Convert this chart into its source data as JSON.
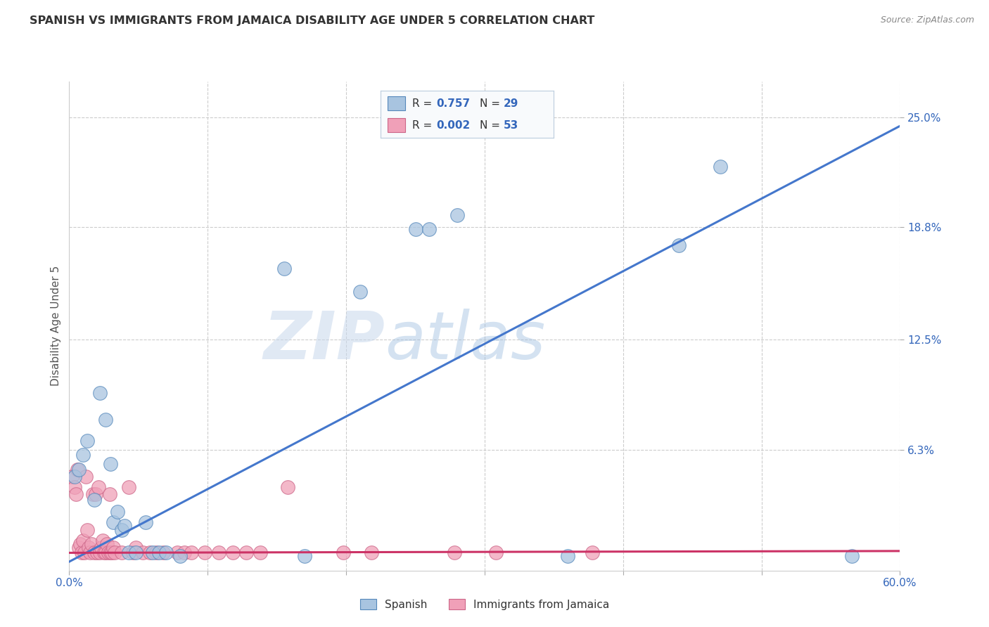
{
  "title": "SPANISH VS IMMIGRANTS FROM JAMAICA DISABILITY AGE UNDER 5 CORRELATION CHART",
  "source": "Source: ZipAtlas.com",
  "ylabel": "Disability Age Under 5",
  "watermark": "ZIPatlas",
  "xlim": [
    0.0,
    0.6
  ],
  "ylim": [
    -0.005,
    0.27
  ],
  "xtick_labels": [
    "0.0%",
    "",
    "",
    "",
    "",
    "",
    "60.0%"
  ],
  "xtick_vals": [
    0.0,
    0.1,
    0.2,
    0.3,
    0.4,
    0.5,
    0.6
  ],
  "ytick_labels": [
    "25.0%",
    "18.8%",
    "12.5%",
    "6.3%"
  ],
  "ytick_vals": [
    0.25,
    0.188,
    0.125,
    0.063
  ],
  "legend_blue_R": "0.757",
  "legend_blue_N": "29",
  "legend_pink_R": "0.002",
  "legend_pink_N": "53",
  "blue_fill": "#A8C4E0",
  "blue_edge": "#5588BB",
  "pink_fill": "#F0A0B8",
  "pink_edge": "#CC6688",
  "blue_line_color": "#4477CC",
  "pink_line_color": "#CC3366",
  "blue_scatter": [
    [
      0.004,
      0.048
    ],
    [
      0.007,
      0.052
    ],
    [
      0.01,
      0.06
    ],
    [
      0.013,
      0.068
    ],
    [
      0.018,
      0.035
    ],
    [
      0.022,
      0.095
    ],
    [
      0.026,
      0.08
    ],
    [
      0.03,
      0.055
    ],
    [
      0.032,
      0.022
    ],
    [
      0.035,
      0.028
    ],
    [
      0.038,
      0.018
    ],
    [
      0.04,
      0.02
    ],
    [
      0.043,
      0.005
    ],
    [
      0.048,
      0.005
    ],
    [
      0.055,
      0.022
    ],
    [
      0.06,
      0.005
    ],
    [
      0.065,
      0.005
    ],
    [
      0.07,
      0.005
    ],
    [
      0.08,
      0.003
    ],
    [
      0.155,
      0.165
    ],
    [
      0.17,
      0.003
    ],
    [
      0.21,
      0.152
    ],
    [
      0.25,
      0.187
    ],
    [
      0.26,
      0.187
    ],
    [
      0.28,
      0.195
    ],
    [
      0.36,
      0.003
    ],
    [
      0.44,
      0.178
    ],
    [
      0.47,
      0.222
    ],
    [
      0.565,
      0.003
    ]
  ],
  "pink_scatter": [
    [
      0.002,
      0.048
    ],
    [
      0.004,
      0.042
    ],
    [
      0.005,
      0.038
    ],
    [
      0.006,
      0.052
    ],
    [
      0.007,
      0.008
    ],
    [
      0.008,
      0.01
    ],
    [
      0.009,
      0.005
    ],
    [
      0.01,
      0.012
    ],
    [
      0.011,
      0.005
    ],
    [
      0.012,
      0.048
    ],
    [
      0.013,
      0.018
    ],
    [
      0.014,
      0.008
    ],
    [
      0.015,
      0.005
    ],
    [
      0.016,
      0.01
    ],
    [
      0.017,
      0.038
    ],
    [
      0.018,
      0.005
    ],
    [
      0.019,
      0.038
    ],
    [
      0.02,
      0.005
    ],
    [
      0.021,
      0.042
    ],
    [
      0.022,
      0.005
    ],
    [
      0.023,
      0.008
    ],
    [
      0.024,
      0.012
    ],
    [
      0.025,
      0.005
    ],
    [
      0.026,
      0.005
    ],
    [
      0.027,
      0.01
    ],
    [
      0.028,
      0.005
    ],
    [
      0.029,
      0.038
    ],
    [
      0.03,
      0.005
    ],
    [
      0.031,
      0.005
    ],
    [
      0.032,
      0.008
    ],
    [
      0.033,
      0.005
    ],
    [
      0.038,
      0.005
    ],
    [
      0.043,
      0.042
    ],
    [
      0.046,
      0.005
    ],
    [
      0.048,
      0.008
    ],
    [
      0.053,
      0.005
    ],
    [
      0.058,
      0.005
    ],
    [
      0.063,
      0.005
    ],
    [
      0.068,
      0.005
    ],
    [
      0.078,
      0.005
    ],
    [
      0.083,
      0.005
    ],
    [
      0.088,
      0.005
    ],
    [
      0.098,
      0.005
    ],
    [
      0.108,
      0.005
    ],
    [
      0.118,
      0.005
    ],
    [
      0.128,
      0.005
    ],
    [
      0.138,
      0.005
    ],
    [
      0.158,
      0.042
    ],
    [
      0.198,
      0.005
    ],
    [
      0.218,
      0.005
    ],
    [
      0.278,
      0.005
    ],
    [
      0.308,
      0.005
    ],
    [
      0.378,
      0.005
    ]
  ],
  "blue_line_x": [
    0.0,
    0.6
  ],
  "blue_line_y": [
    0.0,
    0.245
  ],
  "pink_line_x": [
    0.0,
    0.6
  ],
  "pink_line_y": [
    0.005,
    0.006
  ],
  "background_color": "#FFFFFF",
  "grid_color": "#CCCCCC",
  "legend_box_color": "#F0F4F8",
  "legend_border_color": "#BBCCDD"
}
